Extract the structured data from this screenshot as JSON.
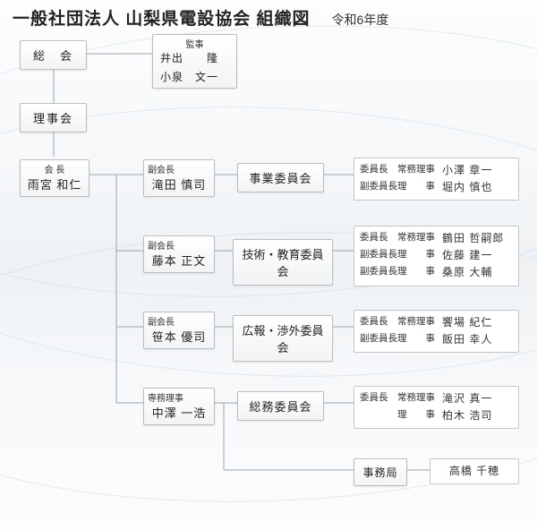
{
  "title": "一般社団法人 山梨県電設協会 組織図",
  "year": "令和6年度",
  "colors": {
    "node_border": "#bdbdbd",
    "node_bg_top": "#ffffff",
    "node_bg_bottom": "#f1f3f5",
    "line": "#9aa6ad",
    "text": "#222222"
  },
  "soukai": {
    "label": "総　会"
  },
  "auditor": {
    "role": "監事",
    "name1": "井出　　隆",
    "name2": "小泉　文一"
  },
  "rijikai": {
    "label": "理事会"
  },
  "president": {
    "role": "会 長",
    "name": "雨宮 和仁"
  },
  "vp1": {
    "role": "副会長",
    "name": "滝田 慎司"
  },
  "vp2": {
    "role": "副会長",
    "name": "藤本 正文"
  },
  "vp3": {
    "role": "副会長",
    "name": "笹本 優司"
  },
  "exec": {
    "role": "専務理事",
    "name": "中澤 一浩"
  },
  "committee1": {
    "label": "事業委員会"
  },
  "committee2": {
    "label": "技術・教育委員会"
  },
  "committee3": {
    "label": "広報・渉外委員会"
  },
  "committee4": {
    "label": "総務委員会"
  },
  "secretariat": {
    "label": "事務局"
  },
  "members1": {
    "rows": [
      {
        "r1": "委員長",
        "r2": "常務理事",
        "nm": "小澤 章一"
      },
      {
        "r1": "副委員長",
        "r2": "理　　事",
        "nm": "堀内 慎也"
      }
    ]
  },
  "members2": {
    "rows": [
      {
        "r1": "委員長",
        "r2": "常務理事",
        "nm": "鶴田 哲嗣郎"
      },
      {
        "r1": "副委員長",
        "r2": "理　　事",
        "nm": "佐藤 建一"
      },
      {
        "r1": "副委員長",
        "r2": "理　　事",
        "nm": "桑原 大輔"
      }
    ]
  },
  "members3": {
    "rows": [
      {
        "r1": "委員長",
        "r2": "常務理事",
        "nm": "饗場 紀仁"
      },
      {
        "r1": "副委員長",
        "r2": "理　　事",
        "nm": "飯田 幸人"
      }
    ]
  },
  "members4": {
    "rows": [
      {
        "r1": "委員長",
        "r2": "常務理事",
        "nm": "滝沢 真一"
      },
      {
        "r1": "",
        "r2": "理　　事",
        "nm": "柏木 浩司"
      }
    ]
  },
  "secretariat_member": {
    "nm": "高橋 千穂"
  }
}
